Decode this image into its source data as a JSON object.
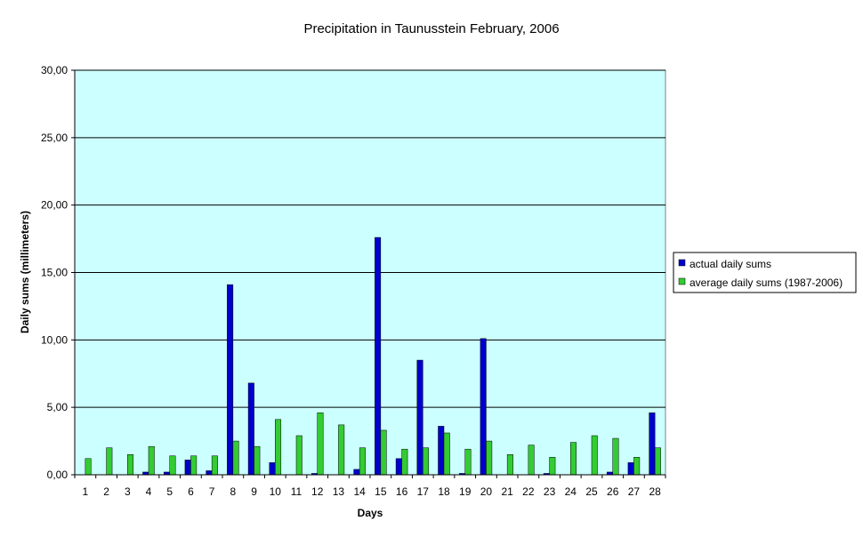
{
  "chart_data": {
    "type": "bar",
    "title": "Precipitation in Taunusstein  February, 2006",
    "xlabel": "Days",
    "ylabel": "Daily sums  (millimeters)",
    "ylim": [
      0,
      30
    ],
    "ytick_values": [
      0,
      5,
      10,
      15,
      20,
      25,
      30
    ],
    "ytick_labels": [
      "0,00",
      "5,00",
      "10,00",
      "15,00",
      "20,00",
      "25,00",
      "30,00"
    ],
    "categories": [
      "1",
      "2",
      "3",
      "4",
      "5",
      "6",
      "7",
      "8",
      "9",
      "10",
      "11",
      "12",
      "13",
      "14",
      "15",
      "16",
      "17",
      "18",
      "19",
      "20",
      "21",
      "22",
      "23",
      "24",
      "25",
      "26",
      "27",
      "28"
    ],
    "grid": true,
    "legend_position": "right",
    "plot_background": "#ccffff",
    "series": [
      {
        "name": "actual daily sums",
        "color": "#0000cc",
        "values": [
          0,
          0,
          0,
          0.2,
          0.2,
          1.1,
          0.3,
          14.1,
          6.8,
          0.9,
          0,
          0.1,
          0,
          0.4,
          17.6,
          1.2,
          8.5,
          3.6,
          0.1,
          10.1,
          0,
          0,
          0.1,
          0,
          0,
          0.2,
          0.9,
          4.6
        ]
      },
      {
        "name": "average daily sums (1987-2006)",
        "color": "#33cc33",
        "values": [
          1.2,
          2.0,
          1.5,
          2.1,
          1.4,
          1.4,
          1.4,
          2.5,
          2.1,
          4.1,
          2.9,
          4.6,
          3.7,
          2.0,
          3.3,
          1.9,
          2.0,
          3.1,
          1.9,
          2.5,
          1.5,
          2.2,
          1.3,
          2.4,
          2.9,
          2.7,
          1.3,
          2.0
        ]
      }
    ]
  }
}
